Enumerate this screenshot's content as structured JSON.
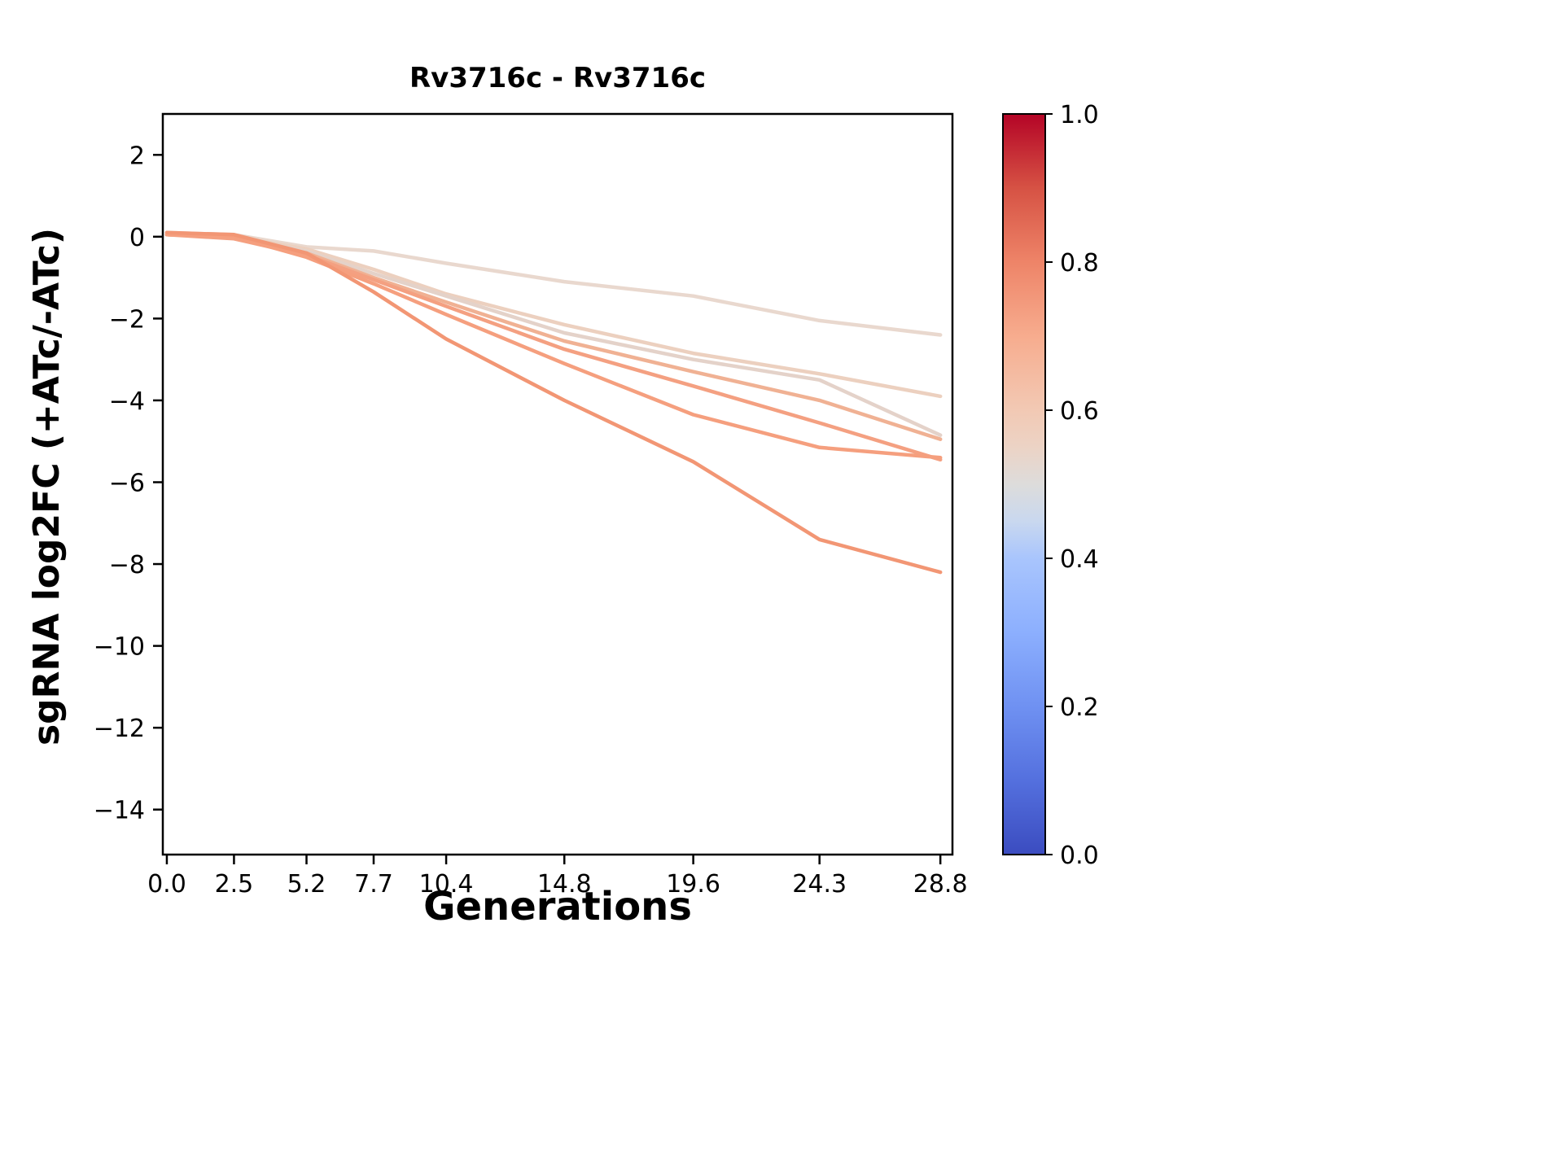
{
  "figure": {
    "background": "#ffffff"
  },
  "chart_data": {
    "type": "line",
    "title": "Rv3716c - Rv3716c",
    "xlabel": "Generations",
    "ylabel": "sgRNA log2FC (+ATc/-ATc)",
    "xlim": [
      -0.15,
      29.25
    ],
    "ylim": [
      -15.1,
      3.0
    ],
    "grid": false,
    "legend": "none",
    "x": [
      0.0,
      2.5,
      5.2,
      7.7,
      10.4,
      14.8,
      19.6,
      24.3,
      28.8
    ],
    "x_tick_labels": [
      "0.0",
      "2.5",
      "5.2",
      "7.7",
      "10.4",
      "14.8",
      "19.6",
      "24.3",
      "28.8"
    ],
    "y_ticks": [
      2,
      0,
      -2,
      -4,
      -6,
      -8,
      -10,
      -12,
      -14
    ],
    "y_tick_labels": [
      "2",
      "0",
      "−2",
      "−4",
      "−6",
      "−8",
      "−10",
      "−12",
      "−14"
    ],
    "series": [
      {
        "name": "line_1",
        "color": "#e9d8ce",
        "values": [
          0.1,
          0.05,
          -0.25,
          -0.35,
          -0.65,
          -1.1,
          -1.45,
          -2.05,
          -2.4
        ]
      },
      {
        "name": "line_2",
        "color": "#ecd0bf",
        "values": [
          0.05,
          0.0,
          -0.3,
          -0.8,
          -1.4,
          -2.15,
          -2.85,
          -3.35,
          -3.9
        ]
      },
      {
        "name": "line_3",
        "color": "#e4d2c9",
        "values": [
          0.05,
          0.0,
          -0.35,
          -0.9,
          -1.45,
          -2.35,
          -3.0,
          -3.5,
          -4.85
        ]
      },
      {
        "name": "line_4",
        "color": "#f0b193",
        "values": [
          0.05,
          0.0,
          -0.4,
          -1.0,
          -1.6,
          -2.55,
          -3.3,
          -4.0,
          -4.95
        ]
      },
      {
        "name": "line_5",
        "color": "#f4a081",
        "values": [
          0.05,
          -0.05,
          -0.45,
          -1.05,
          -1.7,
          -2.75,
          -3.65,
          -4.55,
          -5.45
        ]
      },
      {
        "name": "line_6",
        "color": "#f59f7e",
        "values": [
          0.05,
          0.0,
          -0.5,
          -1.15,
          -1.9,
          -3.1,
          -4.35,
          -5.15,
          -5.4
        ]
      },
      {
        "name": "line_7",
        "color": "#f29674",
        "values": [
          0.1,
          0.05,
          -0.4,
          -1.35,
          -2.5,
          -4.0,
          -5.5,
          -7.4,
          -8.2
        ]
      }
    ],
    "colorbar": {
      "colormap": "coolwarm",
      "min": 0.0,
      "max": 1.0,
      "tick_values": [
        0.0,
        0.2,
        0.4,
        0.6,
        0.8,
        1.0
      ],
      "tick_labels": [
        "0.0",
        "0.2",
        "0.4",
        "0.6",
        "0.8",
        "1.0"
      ],
      "gradient_stops": [
        {
          "offset": 0.0,
          "color": "#3b4cc0"
        },
        {
          "offset": 0.1,
          "color": "#5470de"
        },
        {
          "offset": 0.2,
          "color": "#6f91f2"
        },
        {
          "offset": 0.3,
          "color": "#8caffe"
        },
        {
          "offset": 0.4,
          "color": "#a9c5fd"
        },
        {
          "offset": 0.45,
          "color": "#c9d8ef"
        },
        {
          "offset": 0.5,
          "color": "#dddcdb"
        },
        {
          "offset": 0.55,
          "color": "#ecd3c5"
        },
        {
          "offset": 0.6,
          "color": "#f2c9b4"
        },
        {
          "offset": 0.7,
          "color": "#f7ac8e"
        },
        {
          "offset": 0.8,
          "color": "#ee8468"
        },
        {
          "offset": 0.9,
          "color": "#d65244"
        },
        {
          "offset": 1.0,
          "color": "#b40426"
        }
      ]
    }
  }
}
